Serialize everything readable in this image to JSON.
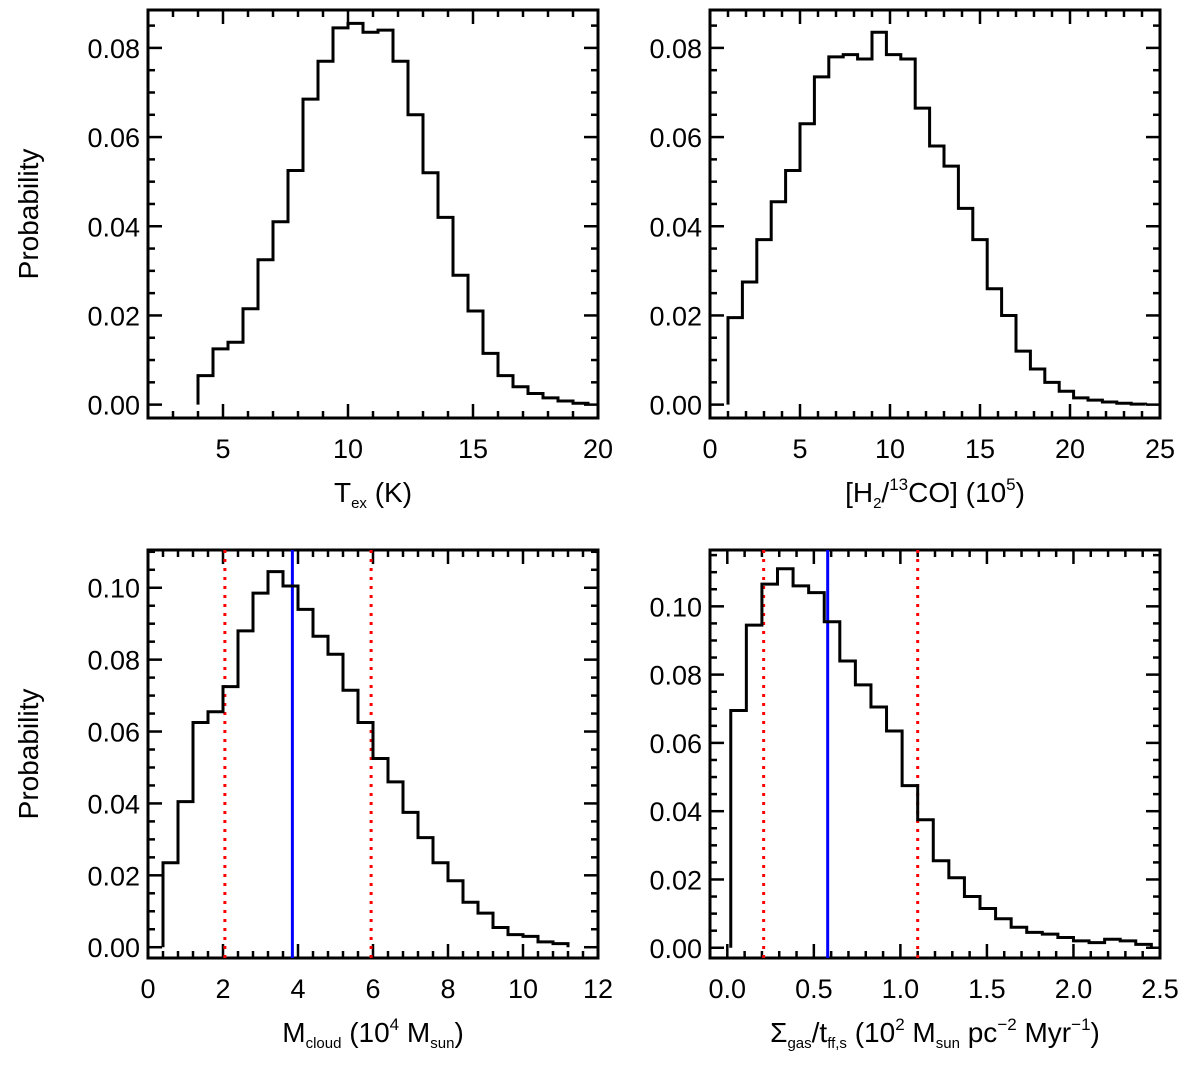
{
  "chart_data": [
    {
      "type": "histogram",
      "xlim": [
        2,
        20
      ],
      "ylim": [
        -0.003,
        0.0885
      ],
      "xticks": [
        5,
        10,
        15,
        20
      ],
      "yticks": [
        0.0,
        0.02,
        0.04,
        0.06,
        0.08
      ],
      "ytick_decimals": 2,
      "ylabel": "Probability",
      "xlabel": {
        "main": "T",
        "sub": "ex",
        "rest": " (K)"
      },
      "bin_edges": [
        4.0,
        4.6,
        5.2,
        5.8,
        6.4,
        7.0,
        7.6,
        8.2,
        8.8,
        9.4,
        10.0,
        10.6,
        11.2,
        11.8,
        12.4,
        13.0,
        13.6,
        14.2,
        14.8,
        15.4,
        16.0,
        16.6,
        17.2,
        17.8,
        18.4,
        19.0,
        19.6
      ],
      "values": [
        0.0065,
        0.0125,
        0.014,
        0.0215,
        0.0325,
        0.041,
        0.0525,
        0.0685,
        0.077,
        0.0845,
        0.0855,
        0.0835,
        0.084,
        0.077,
        0.065,
        0.052,
        0.042,
        0.029,
        0.021,
        0.0115,
        0.0065,
        0.004,
        0.0025,
        0.0015,
        0.0008,
        0.0003
      ],
      "vlines": []
    },
    {
      "type": "histogram",
      "xlim": [
        0,
        25
      ],
      "ylim": [
        -0.003,
        0.0885
      ],
      "xticks": [
        0,
        5,
        10,
        15,
        20,
        25
      ],
      "yticks": [
        0.0,
        0.02,
        0.04,
        0.06,
        0.08
      ],
      "ytick_decimals": 2,
      "ylabel": "",
      "xlabel": {
        "pre": "[H",
        "sub": "2",
        "mid": "/",
        "sup": "13",
        "post": "CO] (10",
        "sup2": "5",
        "end": ")"
      },
      "bin_edges": [
        1.0,
        1.8,
        2.6,
        3.4,
        4.2,
        5.0,
        5.8,
        6.6,
        7.4,
        8.2,
        9.0,
        9.8,
        10.6,
        11.4,
        12.2,
        13.0,
        13.8,
        14.6,
        15.4,
        16.2,
        17.0,
        17.8,
        18.6,
        19.4,
        20.2,
        21.0,
        21.8,
        22.6,
        23.4,
        24.2
      ],
      "values": [
        0.0195,
        0.0275,
        0.037,
        0.0455,
        0.0525,
        0.063,
        0.0735,
        0.078,
        0.0785,
        0.0775,
        0.0835,
        0.0785,
        0.0775,
        0.0665,
        0.058,
        0.0535,
        0.044,
        0.037,
        0.026,
        0.02,
        0.012,
        0.008,
        0.005,
        0.003,
        0.0015,
        0.001,
        0.0006,
        0.0003,
        0.0001
      ],
      "vlines": []
    },
    {
      "type": "histogram",
      "xlim": [
        0,
        12
      ],
      "ylim": [
        -0.003,
        0.1105
      ],
      "xticks": [
        0,
        2,
        4,
        6,
        8,
        10,
        12
      ],
      "yticks": [
        0.0,
        0.02,
        0.04,
        0.06,
        0.08,
        0.1
      ],
      "ytick_decimals": 2,
      "ylabel": "Probability",
      "xlabel": {
        "pre": "M",
        "sub": "cloud",
        "post": " (10",
        "sup": "4",
        "post2": " M",
        "sub2": "sun",
        "end": ")"
      },
      "bin_edges": [
        0.4,
        0.8,
        1.2,
        1.6,
        2.0,
        2.4,
        2.8,
        3.2,
        3.6,
        4.0,
        4.4,
        4.8,
        5.2,
        5.6,
        6.0,
        6.4,
        6.8,
        7.2,
        7.6,
        8.0,
        8.4,
        8.8,
        9.2,
        9.6,
        10.0,
        10.4,
        10.8,
        11.2
      ],
      "values": [
        0.0235,
        0.0405,
        0.0625,
        0.0655,
        0.0725,
        0.088,
        0.0985,
        0.1045,
        0.1005,
        0.094,
        0.0865,
        0.0815,
        0.0715,
        0.0625,
        0.0525,
        0.046,
        0.0375,
        0.0305,
        0.0235,
        0.0185,
        0.0125,
        0.0095,
        0.0055,
        0.0035,
        0.003,
        0.0015,
        0.001
      ],
      "vlines": [
        {
          "x": 2.05,
          "style": "dotted",
          "color": "#ff0000"
        },
        {
          "x": 3.85,
          "style": "solid",
          "color": "#0000ff"
        },
        {
          "x": 5.95,
          "style": "dotted",
          "color": "#ff0000"
        }
      ]
    },
    {
      "type": "histogram",
      "xlim": [
        -0.1,
        2.5
      ],
      "ylim": [
        -0.003,
        0.1165
      ],
      "xticks": [
        0.0,
        0.5,
        1.0,
        1.5,
        2.0,
        2.5
      ],
      "xtick_decimals": 1,
      "yticks": [
        0.0,
        0.02,
        0.04,
        0.06,
        0.08,
        0.1
      ],
      "ytick_decimals": 2,
      "ylabel": "",
      "xlabel": {
        "pre": "Σ",
        "sub": "gas",
        "mid": "/t",
        "sub2": "ff,s",
        "post": " (10",
        "sup": "2",
        "post2": " M",
        "sub3": "sun",
        "post3": " pc",
        "sup2": "−2",
        "post4": " Myr",
        "sup3": "−1",
        "end": ")"
      },
      "bin_edges": [
        0.02,
        0.11,
        0.2,
        0.29,
        0.38,
        0.47,
        0.56,
        0.65,
        0.74,
        0.83,
        0.92,
        1.01,
        1.1,
        1.19,
        1.28,
        1.37,
        1.46,
        1.55,
        1.64,
        1.73,
        1.82,
        1.91,
        2.0,
        2.09,
        2.18,
        2.27,
        2.36,
        2.45
      ],
      "values": [
        0.0695,
        0.0945,
        0.1065,
        0.111,
        0.106,
        0.104,
        0.0955,
        0.084,
        0.077,
        0.0705,
        0.0635,
        0.0475,
        0.0375,
        0.0255,
        0.0205,
        0.015,
        0.0115,
        0.0085,
        0.006,
        0.0045,
        0.004,
        0.003,
        0.002,
        0.0015,
        0.0025,
        0.002,
        0.001
      ],
      "vlines": [
        {
          "x": 0.21,
          "style": "dotted",
          "color": "#ff0000"
        },
        {
          "x": 0.58,
          "style": "solid",
          "color": "#0000ff"
        },
        {
          "x": 1.1,
          "style": "dotted",
          "color": "#ff0000"
        }
      ]
    }
  ]
}
